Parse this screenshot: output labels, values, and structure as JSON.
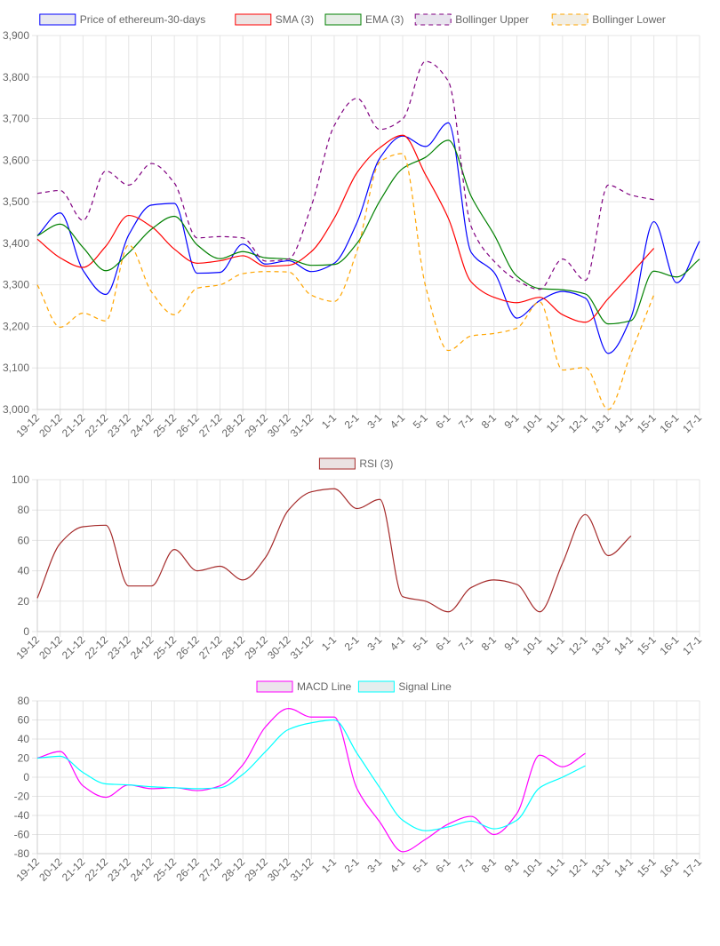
{
  "categories": [
    "19-12",
    "20-12",
    "21-12",
    "22-12",
    "23-12",
    "24-12",
    "25-12",
    "26-12",
    "27-12",
    "28-12",
    "29-12",
    "30-12",
    "31-12",
    "1-1",
    "2-1",
    "3-1",
    "4-1",
    "5-1",
    "6-1",
    "7-1",
    "8-1",
    "9-1",
    "10-1",
    "11-1",
    "12-1",
    "13-1",
    "14-1",
    "15-1",
    "16-1",
    "17-1"
  ],
  "chart_data": [
    {
      "type": "line",
      "id": "price",
      "ylim": [
        3000,
        3900
      ],
      "ytick_step": 100,
      "ytick_format": "comma",
      "grid": true,
      "legend_position": "top",
      "series": [
        {
          "name": "Price of ethereum-30-days",
          "color": "#0000ff",
          "fill": "#e8e8f0",
          "dashed": false,
          "values": [
            3418,
            3473,
            3335,
            3277,
            3420,
            3492,
            3496,
            3328,
            3330,
            3398,
            3350,
            3358,
            3332,
            3352,
            3450,
            3605,
            3658,
            3633,
            3690,
            3378,
            3330,
            3220,
            3262,
            3284,
            3268,
            3135,
            3222,
            3452,
            3305,
            3405
          ]
        },
        {
          "name": "SMA (3)",
          "color": "#ff0000",
          "fill": "#ece4e4",
          "dashed": false,
          "values": [
            3410,
            3365,
            3342,
            3393,
            3467,
            3440,
            3386,
            3352,
            3358,
            3370,
            3345,
            3347,
            3380,
            3460,
            3570,
            3630,
            3660,
            3565,
            3460,
            3307,
            3270,
            3257,
            3270,
            3228,
            3210,
            3267,
            3327,
            3388,
            null,
            null
          ]
        },
        {
          "name": "EMA (3)",
          "color": "#008000",
          "fill": "#e6ede6",
          "dashed": false,
          "values": [
            3418,
            3446,
            3390,
            3334,
            3377,
            3434,
            3465,
            3396,
            3363,
            3380,
            3365,
            3362,
            3347,
            3349,
            3400,
            3502,
            3580,
            3607,
            3648,
            3513,
            3421,
            3321,
            3291,
            3288,
            3278,
            3206,
            3214,
            3333,
            3319,
            3362
          ]
        },
        {
          "name": "Bollinger Upper",
          "color": "#800080",
          "fill": "#e8e4ee",
          "dashed": true,
          "values": [
            3520,
            3527,
            3455,
            3574,
            3540,
            3592,
            3545,
            3413,
            3416,
            3413,
            3357,
            3362,
            3490,
            3683,
            3749,
            3674,
            3699,
            3838,
            3790,
            3440,
            3357,
            3311,
            3289,
            3362,
            3311,
            3540,
            3516,
            3505,
            null,
            null
          ]
        },
        {
          "name": "Bollinger Lower",
          "color": "#ffa500",
          "fill": "#f2eee4",
          "dashed": true,
          "values": [
            3300,
            3198,
            3232,
            3213,
            3396,
            3283,
            3228,
            3292,
            3300,
            3327,
            3332,
            3331,
            3275,
            3260,
            3382,
            3596,
            3616,
            3297,
            3142,
            3177,
            3183,
            3196,
            3259,
            3095,
            3101,
            3000,
            3136,
            3276,
            null,
            null
          ]
        }
      ]
    },
    {
      "type": "line",
      "id": "rsi",
      "ylim": [
        0,
        100
      ],
      "ytick_step": 20,
      "ytick_format": "plain",
      "grid": true,
      "legend_position": "top",
      "series": [
        {
          "name": "RSI (3)",
          "color": "#a52a2a",
          "fill": "#ebe3e3",
          "dashed": false,
          "values": [
            22,
            58,
            69,
            70,
            30,
            30,
            54,
            40,
            43,
            34,
            49,
            80,
            92,
            94,
            81,
            87,
            23,
            20,
            13,
            29,
            34,
            31,
            13,
            45,
            77,
            50,
            63,
            null,
            null,
            null
          ]
        }
      ]
    },
    {
      "type": "line",
      "id": "macd",
      "ylim": [
        -80,
        80
      ],
      "ytick_step": 20,
      "ytick_format": "plain",
      "grid": true,
      "legend_position": "top",
      "series": [
        {
          "name": "MACD Line",
          "color": "#ff00ff",
          "fill": "#ece4ec",
          "dashed": false,
          "values": [
            20,
            27,
            -9,
            -21,
            -8,
            -12,
            -11,
            -14,
            -9,
            13,
            53,
            72,
            63,
            63,
            -12,
            -47,
            -78,
            -65,
            -49,
            -41,
            -60,
            -38,
            23,
            11,
            25,
            null,
            null,
            null,
            null,
            null
          ]
        },
        {
          "name": "Signal Line",
          "color": "#00ffff",
          "fill": "#e4eeee",
          "dashed": false,
          "values": [
            20,
            22,
            5,
            -7,
            -8,
            -10,
            -11,
            -12,
            -11,
            3,
            27,
            50,
            57,
            60,
            25,
            -11,
            -45,
            -56,
            -52,
            -46,
            -54,
            -45,
            -11,
            0,
            12,
            null,
            null,
            null,
            null,
            null
          ]
        }
      ]
    }
  ]
}
